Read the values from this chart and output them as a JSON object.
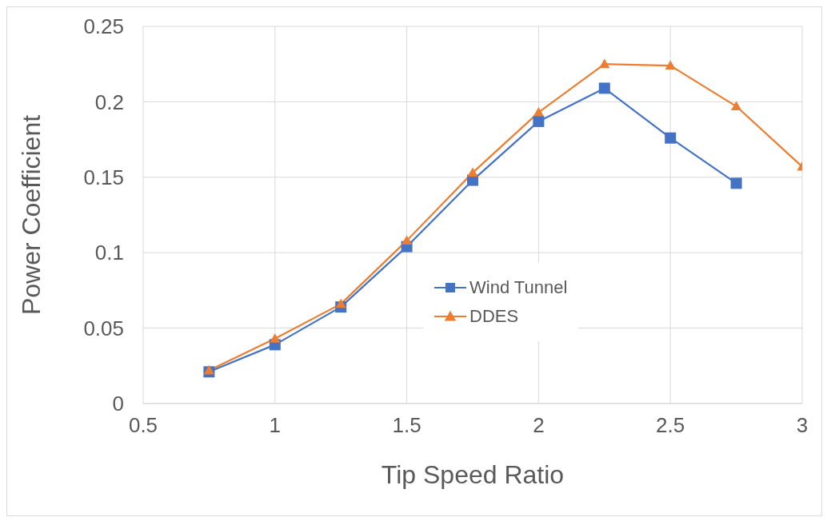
{
  "chart_data": {
    "type": "line",
    "xlabel": "Tip Speed Ratio",
    "ylabel": "Power Coefficient",
    "series": [
      {
        "name": "Wind Tunnel",
        "color": "#4472c4",
        "marker": "square",
        "x": [
          0.75,
          1,
          1.25,
          1.5,
          1.75,
          2,
          2.25,
          2.5,
          2.75
        ],
        "values": [
          0.021,
          0.039,
          0.064,
          0.104,
          0.148,
          0.187,
          0.209,
          0.176,
          0.146
        ]
      },
      {
        "name": "DDES",
        "color": "#ed7d31",
        "marker": "triangle",
        "x": [
          0.75,
          1,
          1.25,
          1.5,
          1.75,
          2,
          2.25,
          2.5,
          2.75,
          3
        ],
        "values": [
          0.022,
          0.043,
          0.066,
          0.108,
          0.153,
          0.193,
          0.225,
          0.224,
          0.197,
          0.157
        ]
      }
    ],
    "xlim": [
      0.5,
      3
    ],
    "xticks": [
      0.5,
      1,
      1.5,
      2,
      2.5,
      3
    ],
    "ylim": [
      0,
      0.25
    ],
    "yticks": [
      0,
      0.05,
      0.1,
      0.15,
      0.2,
      0.25
    ],
    "grid": true,
    "legend": "center",
    "line_style": "solid"
  }
}
